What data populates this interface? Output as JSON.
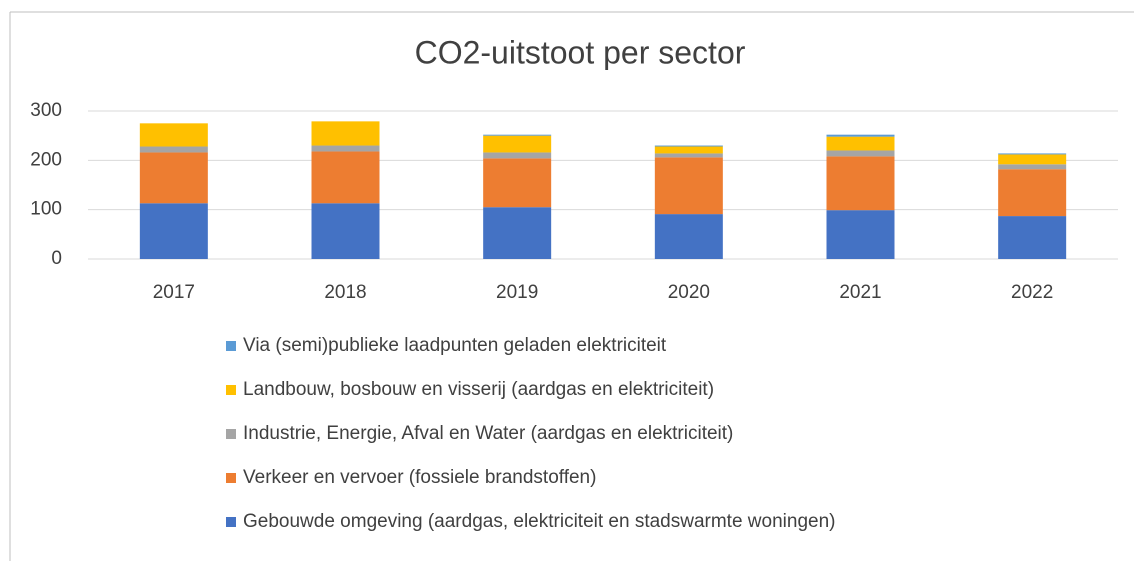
{
  "chart_data": {
    "type": "stacked_bar",
    "title": "CO2-uitstoot per sector",
    "categories": [
      "2017",
      "2018",
      "2019",
      "2020",
      "2021",
      "2022"
    ],
    "series": [
      {
        "name": "Gebouwde omgeving (aardgas, elektriciteit en stadswarmte woningen)",
        "color": "#4472c4",
        "values": [
          113,
          113,
          105,
          91,
          99,
          87
        ]
      },
      {
        "name": "Verkeer en vervoer (fossiele brandstoffen)",
        "color": "#ed7d31",
        "values": [
          103,
          105,
          99,
          115,
          109,
          95
        ]
      },
      {
        "name": "Industrie, Energie, Afval en Water (aardgas en elektriciteit)",
        "color": "#a5a5a5",
        "values": [
          12,
          12,
          12,
          8,
          12,
          10
        ]
      },
      {
        "name": "Landbouw, bosbouw en visserij (aardgas en elektriciteit)",
        "color": "#ffc000",
        "values": [
          47,
          49,
          34,
          14,
          28,
          20
        ]
      },
      {
        "name": "Via (semi)publieke laadpunten geladen elektriciteit",
        "color": "#5b9bd5",
        "values": [
          0,
          0,
          2,
          2,
          4,
          2
        ]
      }
    ],
    "ylim": [
      0,
      300
    ],
    "yticks": [
      0,
      100,
      200,
      300
    ],
    "grid": true
  }
}
